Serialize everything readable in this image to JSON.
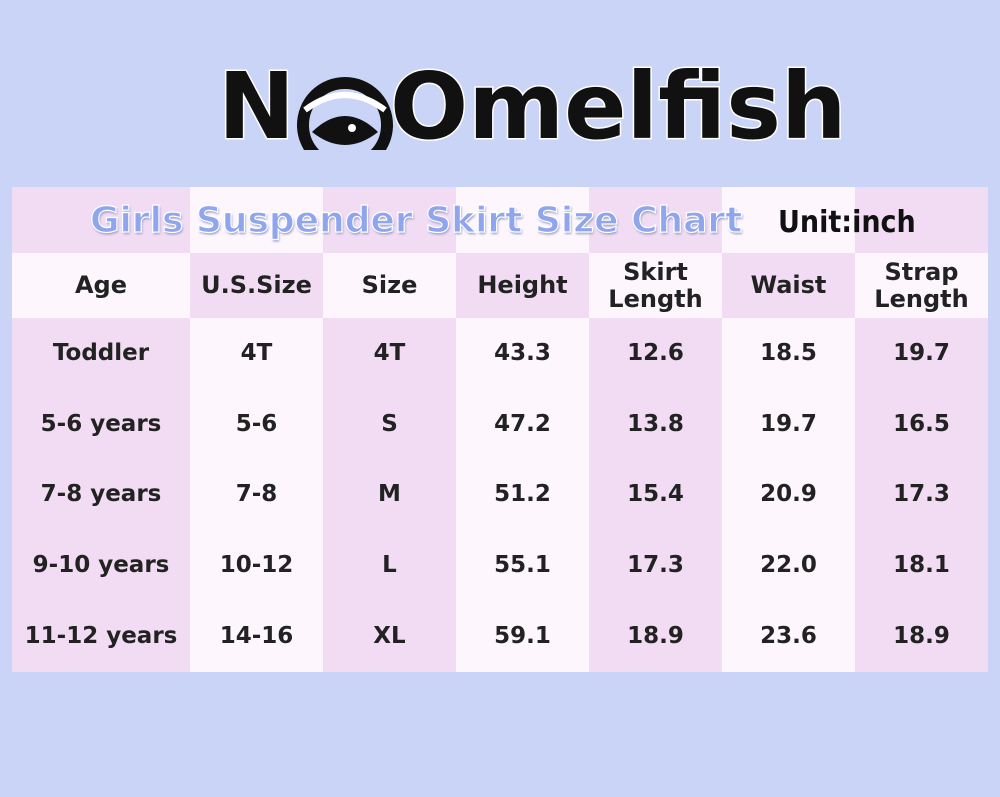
{
  "logo": {
    "left": "N",
    "right": "Omelfish"
  },
  "table": {
    "title": "Girls Suspender Skirt Size Chart",
    "unit": "Unit:inch",
    "header": [
      "Age",
      "U.S.Size",
      "Size",
      "Height",
      "Skirt Length",
      "Waist",
      "Strap Length"
    ],
    "rows": [
      [
        "Toddler",
        "4T",
        "4T",
        "43.3",
        "12.6",
        "18.5",
        "19.7"
      ],
      [
        "5-6 years",
        "5-6",
        "S",
        "47.2",
        "13.8",
        "19.7",
        "16.5"
      ],
      [
        "7-8 years",
        "7-8",
        "M",
        "51.2",
        "15.4",
        "20.9",
        "17.3"
      ],
      [
        "9-10 years",
        "10-12",
        "L",
        "55.1",
        "17.3",
        "22.0",
        "18.1"
      ],
      [
        "11-12 years",
        "14-16",
        "XL",
        "59.1",
        "18.9",
        "23.6",
        "18.9"
      ]
    ]
  }
}
